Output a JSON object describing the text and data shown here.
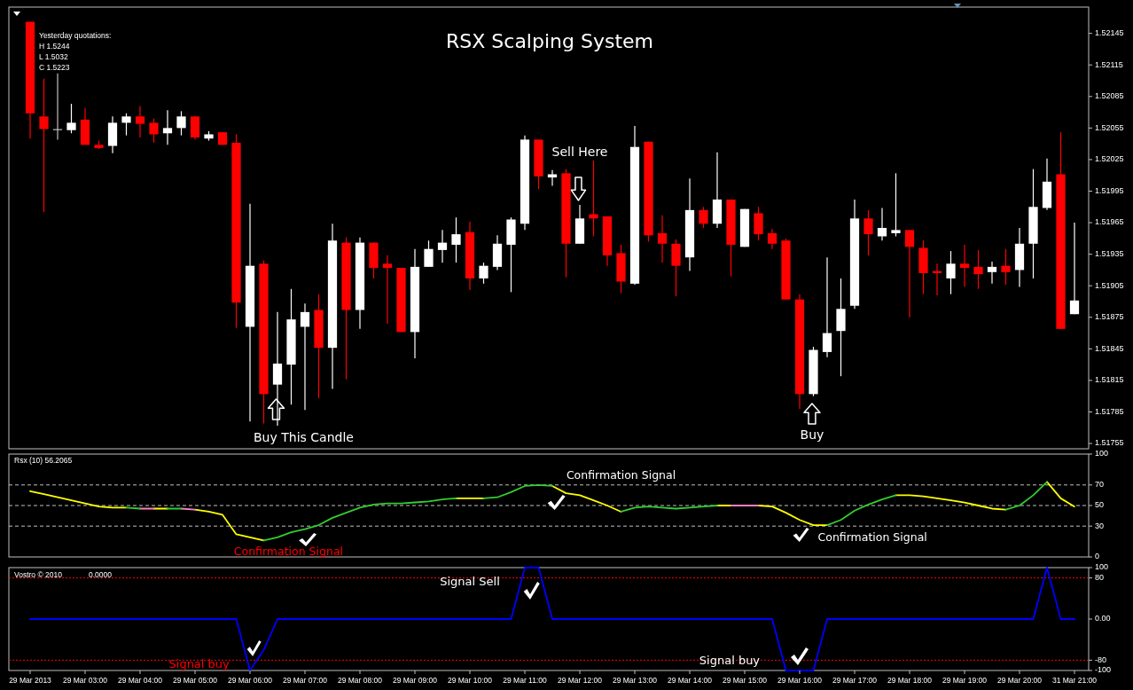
{
  "chart_data": [
    {
      "type": "candlestick",
      "title": "RSX Scalping System",
      "categories": [
        null,
        null,
        null,
        null,
        null,
        null,
        null,
        null,
        null,
        null,
        null,
        null,
        null,
        null,
        null,
        null,
        null,
        null,
        null,
        null,
        null,
        null,
        null,
        null,
        null,
        null,
        null,
        null,
        null,
        null,
        null,
        null,
        null,
        null,
        null,
        null,
        null,
        null,
        null,
        null,
        null,
        null,
        null,
        null,
        null,
        null,
        null,
        null,
        null,
        null,
        null,
        null,
        null,
        null,
        null,
        null,
        null,
        null,
        null,
        null,
        null,
        null,
        null,
        null,
        null,
        null,
        null,
        null,
        null,
        null,
        null,
        null,
        null,
        null,
        null,
        null,
        null
      ],
      "ohlc": [
        [
          1.52156,
          1.52156,
          1.52045,
          1.52069
        ],
        [
          1.52066,
          1.52102,
          1.51975,
          1.52054
        ],
        [
          1.52054,
          1.52107,
          1.52044,
          1.52054
        ],
        [
          1.52053,
          1.52078,
          1.5205,
          1.5206
        ],
        [
          1.52063,
          1.52074,
          1.52039,
          1.52039
        ],
        [
          1.52039,
          1.52043,
          1.52035,
          1.52036
        ],
        [
          1.52038,
          1.52066,
          1.52031,
          1.5206
        ],
        [
          1.5206,
          1.52069,
          1.52048,
          1.52066
        ],
        [
          1.52066,
          1.52076,
          1.52046,
          1.52059
        ],
        [
          1.5206,
          1.52064,
          1.52041,
          1.52049
        ],
        [
          1.5205,
          1.52072,
          1.52039,
          1.52055
        ],
        [
          1.52055,
          1.52071,
          1.52048,
          1.52066
        ],
        [
          1.52066,
          1.52066,
          1.52044,
          1.52046
        ],
        [
          1.52045,
          1.52052,
          1.52043,
          1.52049
        ],
        [
          1.52051,
          1.52051,
          1.52039,
          1.52039
        ],
        [
          1.52041,
          1.52049,
          1.51865,
          1.51889
        ],
        [
          1.51866,
          1.51983,
          1.51776,
          1.51924
        ],
        [
          1.51926,
          1.51929,
          1.51774,
          1.51802
        ],
        [
          1.51811,
          1.5188,
          1.51772,
          1.51831
        ],
        [
          1.5183,
          1.51902,
          1.51792,
          1.51873
        ],
        [
          1.51866,
          1.51888,
          1.51787,
          1.5188
        ],
        [
          1.51882,
          1.51897,
          1.51798,
          1.51846
        ],
        [
          1.51846,
          1.51964,
          1.51807,
          1.51948
        ],
        [
          1.51946,
          1.51951,
          1.51816,
          1.51882
        ],
        [
          1.51882,
          1.51951,
          1.51864,
          1.51946
        ],
        [
          1.51946,
          1.51946,
          1.51912,
          1.51922
        ],
        [
          1.51926,
          1.51934,
          1.51869,
          1.51922
        ],
        [
          1.51922,
          1.51922,
          1.51861,
          1.51861
        ],
        [
          1.51861,
          1.5194,
          1.51836,
          1.51923
        ],
        [
          1.51923,
          1.51948,
          1.51923,
          1.5194
        ],
        [
          1.51939,
          1.51958,
          1.51927,
          1.51946
        ],
        [
          1.51944,
          1.5197,
          1.51927,
          1.51954
        ],
        [
          1.51956,
          1.51966,
          1.51901,
          1.51912
        ],
        [
          1.51912,
          1.51927,
          1.51907,
          1.51924
        ],
        [
          1.51923,
          1.51953,
          1.5192,
          1.51945
        ],
        [
          1.51944,
          1.5197,
          1.51899,
          1.51968
        ],
        [
          1.51964,
          1.52048,
          1.51958,
          1.52044
        ],
        [
          1.52044,
          1.52044,
          1.51997,
          1.52009
        ],
        [
          1.52008,
          1.52015,
          1.52,
          1.52011
        ],
        [
          1.52012,
          1.52016,
          1.51913,
          1.51945
        ],
        [
          1.51945,
          1.51982,
          1.51945,
          1.51969
        ],
        [
          1.51973,
          1.52024,
          1.51952,
          1.51969
        ],
        [
          1.51971,
          1.51971,
          1.51924,
          1.51934
        ],
        [
          1.51936,
          1.51944,
          1.51898,
          1.51909
        ],
        [
          1.51907,
          1.52057,
          1.51906,
          1.52037
        ],
        [
          1.52042,
          1.52042,
          1.51947,
          1.51953
        ],
        [
          1.51955,
          1.51972,
          1.51927,
          1.51945
        ],
        [
          1.51945,
          1.51949,
          1.51895,
          1.51924
        ],
        [
          1.51932,
          1.52007,
          1.51919,
          1.51977
        ],
        [
          1.51977,
          1.5198,
          1.5196,
          1.51964
        ],
        [
          1.51964,
          1.52032,
          1.5196,
          1.51987
        ],
        [
          1.51987,
          1.51987,
          1.51914,
          1.51944
        ],
        [
          1.51942,
          1.51978,
          1.51942,
          1.51978
        ],
        [
          1.51974,
          1.5198,
          1.51948,
          1.51954
        ],
        [
          1.51955,
          1.51959,
          1.5194,
          1.51945
        ],
        [
          1.51948,
          1.5195,
          1.51892,
          1.51892
        ],
        [
          1.51892,
          1.51897,
          1.51788,
          1.51802
        ],
        [
          1.51802,
          1.51847,
          1.518,
          1.51844
        ],
        [
          1.51842,
          1.51932,
          1.51837,
          1.5186
        ],
        [
          1.51862,
          1.51912,
          1.51819,
          1.51883
        ],
        [
          1.51886,
          1.51987,
          1.51883,
          1.51969
        ],
        [
          1.51969,
          1.51977,
          1.51934,
          1.51954
        ],
        [
          1.51952,
          1.51979,
          1.51948,
          1.5196
        ],
        [
          1.51955,
          1.52012,
          1.51952,
          1.51958
        ],
        [
          1.51958,
          1.51958,
          1.51875,
          1.51942
        ],
        [
          1.51941,
          1.51948,
          1.51897,
          1.51917
        ],
        [
          1.51919,
          1.51926,
          1.51896,
          1.51917
        ],
        [
          1.51912,
          1.51938,
          1.51897,
          1.51926
        ],
        [
          1.51926,
          1.51944,
          1.51904,
          1.51922
        ],
        [
          1.51923,
          1.51939,
          1.51902,
          1.51916
        ],
        [
          1.51918,
          1.51928,
          1.51907,
          1.51923
        ],
        [
          1.51924,
          1.5194,
          1.51906,
          1.51918
        ],
        [
          1.5192,
          1.5196,
          1.51904,
          1.51945
        ],
        [
          1.51945,
          1.52016,
          1.51912,
          1.5198
        ],
        [
          1.51979,
          1.52026,
          1.51977,
          1.52004
        ],
        [
          1.52011,
          1.52051,
          1.51864,
          1.51864
        ],
        [
          1.51878,
          1.51965,
          1.51878,
          1.51891
        ]
      ],
      "colors": [
        "#ff0000",
        "#ff0000",
        "#c0c0c0",
        "#ffffff",
        "#ff0000",
        "#ff0000",
        "#ffffff",
        "#ffffff",
        "#ff0000",
        "#ff0000",
        "#ffffff",
        "#ffffff",
        "#ff0000",
        "#ffffff",
        "#ff0000",
        "#ff0000",
        "#ffffff",
        "#ff0000",
        "#ffffff",
        "#ffffff",
        "#ffffff",
        "#ff0000",
        "#ffffff",
        "#ff0000",
        "#ffffff",
        "#ff0000",
        "#ff0000",
        "#ff0000",
        "#ffffff",
        "#ffffff",
        "#ffffff",
        "#ffffff",
        "#ff0000",
        "#ffffff",
        "#ffffff",
        "#ffffff",
        "#ffffff",
        "#ff0000",
        "#ffffff",
        "#ff0000",
        "#ffffff",
        "#ff0000",
        "#ff0000",
        "#ff0000",
        "#ffffff",
        "#ff0000",
        "#ff0000",
        "#ff0000",
        "#ffffff",
        "#ff0000",
        "#ffffff",
        "#ff0000",
        "#ffffff",
        "#ff0000",
        "#ff0000",
        "#ff0000",
        "#ff0000",
        "#ffffff",
        "#ffffff",
        "#ffffff",
        "#ffffff",
        "#ff0000",
        "#ffffff",
        "#ffffff",
        "#ff0000",
        "#ff0000",
        "#ff0000",
        "#ffffff",
        "#ff0000",
        "#ff0000",
        "#ffffff",
        "#ff0000",
        "#ffffff",
        "#ffffff",
        "#ffffff",
        "#ff0000",
        "#ffffff"
      ],
      "ylim": [
        1.5175,
        1.5217
      ],
      "yticks": [
        1.51755,
        1.51785,
        1.51815,
        1.51845,
        1.51875,
        1.51905,
        1.51935,
        1.51965,
        1.51995,
        1.52025,
        1.52055,
        1.52085,
        1.52115,
        1.52145
      ],
      "tick_labels": "y",
      "annotations": [
        "Yesterday quotations:",
        "H 1.5244",
        "L 1.5032",
        "C 1.5223",
        "Buy This Candle",
        "Sell Here",
        "Buy"
      ]
    },
    {
      "type": "line",
      "title": "Rsx (10) 56.2065",
      "categories": [
        null,
        null,
        null,
        null,
        null,
        null,
        null,
        null,
        null,
        null,
        null,
        null,
        null,
        null,
        null,
        null,
        null,
        null,
        null,
        null,
        null,
        null,
        null,
        null,
        null,
        null,
        null,
        null,
        null,
        null,
        null,
        null,
        null,
        null,
        null,
        null,
        null,
        null,
        null,
        null,
        null,
        null,
        null,
        null,
        null,
        null,
        null,
        null,
        null,
        null,
        null,
        null,
        null,
        null,
        null,
        null,
        null,
        null,
        null,
        null,
        null,
        null,
        null,
        null,
        null,
        null,
        null,
        null,
        null,
        null,
        null,
        null,
        null,
        null,
        null,
        null,
        null
      ],
      "series": [
        {
          "color": "#ffff00",
          "values": [
            64,
            61,
            58,
            55,
            52,
            49,
            48,
            48,
            null,
            47,
            47,
            null,
            46,
            44,
            41,
            22,
            19,
            16,
            null,
            null,
            null,
            null,
            null,
            null,
            null,
            null,
            null,
            null,
            null,
            null,
            null,
            57,
            57,
            57,
            null,
            null,
            null,
            null,
            69,
            62,
            60,
            55,
            50,
            44,
            null,
            null,
            null,
            null,
            null,
            null,
            50,
            50,
            null,
            50,
            49,
            43,
            36,
            31,
            31,
            null,
            null,
            null,
            null,
            60,
            60,
            59,
            57,
            55,
            53,
            50,
            47,
            46,
            null,
            null,
            73,
            57,
            49
          ]
        },
        {
          "color": "#ff80c0",
          "values": [
            null,
            null,
            null,
            null,
            null,
            null,
            null,
            null,
            47,
            47,
            null,
            47,
            46,
            null,
            null,
            null,
            null,
            null,
            null,
            null,
            null,
            null,
            null,
            null,
            null,
            null,
            null,
            null,
            null,
            null,
            null,
            null,
            null,
            null,
            null,
            null,
            null,
            null,
            null,
            null,
            null,
            null,
            null,
            null,
            null,
            null,
            null,
            null,
            null,
            null,
            null,
            50,
            50,
            50,
            null,
            null,
            null,
            null,
            null,
            null,
            null,
            null,
            null,
            null,
            null,
            null,
            null,
            null,
            null,
            null,
            null,
            null,
            null,
            null,
            null,
            null,
            null
          ]
        },
        {
          "color": "#32cd32",
          "values": [
            null,
            null,
            null,
            null,
            null,
            null,
            null,
            48,
            47,
            null,
            47,
            47,
            null,
            null,
            null,
            null,
            null,
            16,
            19,
            24,
            27,
            31,
            38,
            43,
            48,
            51,
            52,
            52,
            53,
            54,
            56,
            57,
            null,
            57,
            58,
            63,
            69,
            70,
            69,
            null,
            null,
            null,
            null,
            44,
            48,
            49,
            48,
            47,
            48,
            49,
            50,
            null,
            null,
            null,
            null,
            null,
            null,
            null,
            31,
            36,
            45,
            51,
            56,
            60,
            null,
            null,
            null,
            null,
            null,
            null,
            null,
            46,
            50,
            60,
            73,
            null,
            null
          ]
        }
      ],
      "ylim": [
        0,
        100
      ],
      "yticks": [
        0,
        30,
        50,
        70,
        100
      ],
      "tick_labels": "y",
      "ref_lines": [
        {
          "axis": "y",
          "value": 70,
          "color": "#c0c0c0",
          "line_style": "dashed"
        },
        {
          "axis": "y",
          "value": 50,
          "color": "#c0c0c0",
          "line_style": "dashed"
        },
        {
          "axis": "y",
          "value": 30,
          "color": "#c0c0c0",
          "line_style": "dashed"
        }
      ],
      "annotations": [
        "Confirmation Signal",
        "Confirmation Signal",
        "Confirmation Signal"
      ]
    },
    {
      "type": "line",
      "title": "Vostro © 2010",
      "categories": [
        "29 Mar 2013",
        null,
        null,
        null,
        "29 Mar 03:00",
        null,
        null,
        null,
        "29 Mar 04:00",
        null,
        null,
        null,
        "29 Mar 05:00",
        null,
        null,
        null,
        "29 Mar 06:00",
        null,
        null,
        null,
        "29 Mar 07:00",
        null,
        null,
        null,
        "29 Mar 08:00",
        null,
        null,
        null,
        "29 Mar 09:00",
        null,
        null,
        null,
        "29 Mar 10:00",
        null,
        null,
        null,
        "29 Mar 11:00",
        null,
        null,
        null,
        "29 Mar 12:00",
        null,
        null,
        null,
        "29 Mar 13:00",
        null,
        null,
        null,
        "29 Mar 14:00",
        null,
        null,
        null,
        "29 Mar 15:00",
        null,
        null,
        null,
        "29 Mar 16:00",
        null,
        null,
        null,
        "29 Mar 17:00",
        null,
        null,
        null,
        "29 Mar 18:00",
        null,
        null,
        null,
        "29 Mar 19:00",
        null,
        null,
        null,
        "29 Mar 20:00",
        null,
        null,
        null,
        "31 Mar 21:00"
      ],
      "series": [
        {
          "color": "#0000ff",
          "values": [
            0,
            0,
            0,
            0,
            0,
            0,
            0,
            0,
            0,
            0,
            0,
            0,
            0,
            0,
            0,
            0,
            -100,
            -60,
            0,
            0,
            0,
            0,
            0,
            0,
            0,
            0,
            0,
            0,
            0,
            0,
            0,
            0,
            0,
            0,
            0,
            0,
            100,
            100,
            0,
            0,
            0,
            0,
            0,
            0,
            0,
            0,
            0,
            0,
            0,
            0,
            0,
            0,
            0,
            0,
            0,
            -100,
            -100,
            -100,
            0,
            0,
            0,
            0,
            0,
            0,
            0,
            0,
            0,
            0,
            0,
            0,
            0,
            0,
            0,
            0,
            100,
            0,
            0
          ]
        }
      ],
      "ylim": [
        -100,
        100
      ],
      "yticks": [
        -100,
        -80,
        {
          "value": 0,
          "label": "0.00"
        },
        80,
        100
      ],
      "ref_lines": [
        {
          "axis": "y",
          "value": 80,
          "color": "#ff0000",
          "line_style": "dotted"
        },
        {
          "axis": "y",
          "value": -80,
          "color": "#ff0000",
          "line_style": "dotted"
        }
      ],
      "annotations": [
        "0.0000",
        "Signal buy",
        "Signal Sell",
        "Signal buy"
      ]
    }
  ]
}
